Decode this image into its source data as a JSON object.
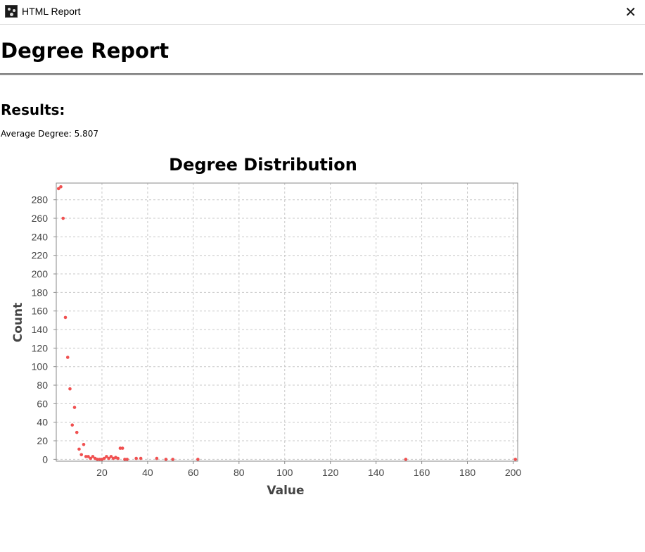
{
  "window": {
    "title": "HTML Report",
    "icon": "gephi-app-icon",
    "close_glyph": "✕"
  },
  "report": {
    "title": "Degree Report",
    "results_heading": "Results:",
    "average_degree_label": "Average Degree:",
    "average_degree_value": "5.807"
  },
  "chart_data": {
    "type": "scatter",
    "title": "Degree Distribution",
    "xlabel": "Value",
    "ylabel": "Count",
    "xlim": [
      0,
      202
    ],
    "ylim": [
      -2,
      298
    ],
    "xticks": [
      20,
      40,
      60,
      80,
      100,
      120,
      140,
      160,
      180,
      200
    ],
    "yticks": [
      0,
      20,
      40,
      60,
      80,
      100,
      120,
      140,
      160,
      180,
      200,
      220,
      240,
      260,
      280
    ],
    "grid": true,
    "point_color": "#f05050",
    "points": [
      {
        "x": 1,
        "y": 292
      },
      {
        "x": 2,
        "y": 294
      },
      {
        "x": 3,
        "y": 260
      },
      {
        "x": 4,
        "y": 153
      },
      {
        "x": 5,
        "y": 110
      },
      {
        "x": 6,
        "y": 76
      },
      {
        "x": 7,
        "y": 37
      },
      {
        "x": 8,
        "y": 56
      },
      {
        "x": 9,
        "y": 29
      },
      {
        "x": 10,
        "y": 11
      },
      {
        "x": 11,
        "y": 5
      },
      {
        "x": 12,
        "y": 16
      },
      {
        "x": 13,
        "y": 3
      },
      {
        "x": 14,
        "y": 3
      },
      {
        "x": 15,
        "y": 1
      },
      {
        "x": 16,
        "y": 3
      },
      {
        "x": 17,
        "y": 1
      },
      {
        "x": 18,
        "y": 0
      },
      {
        "x": 19,
        "y": 0
      },
      {
        "x": 20,
        "y": 0
      },
      {
        "x": 21,
        "y": 1
      },
      {
        "x": 22,
        "y": 3
      },
      {
        "x": 23,
        "y": 1
      },
      {
        "x": 24,
        "y": 3
      },
      {
        "x": 25,
        "y": 1
      },
      {
        "x": 26,
        "y": 2
      },
      {
        "x": 27,
        "y": 1
      },
      {
        "x": 28,
        "y": 12
      },
      {
        "x": 29,
        "y": 12
      },
      {
        "x": 30,
        "y": 0
      },
      {
        "x": 31,
        "y": 0
      },
      {
        "x": 35,
        "y": 1
      },
      {
        "x": 37,
        "y": 1
      },
      {
        "x": 44,
        "y": 1
      },
      {
        "x": 48,
        "y": 0
      },
      {
        "x": 51,
        "y": 0
      },
      {
        "x": 62,
        "y": 0
      },
      {
        "x": 153,
        "y": 0
      },
      {
        "x": 201,
        "y": 0
      }
    ]
  }
}
